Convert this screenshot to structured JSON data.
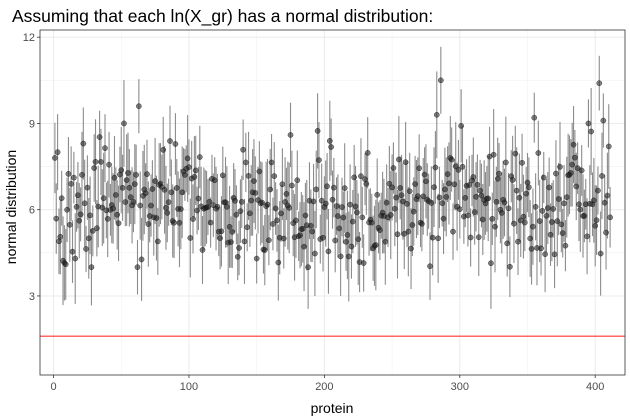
{
  "chart_data": {
    "type": "scatter",
    "title": "Assuming that each ln(X_gr) has a normal distribution:",
    "xlabel": "protein",
    "ylabel": "normal distribution",
    "xlim": [
      -10,
      422
    ],
    "ylim": [
      0.25,
      12.25
    ],
    "xticks": [
      "0",
      "100",
      "200",
      "300",
      "400"
    ],
    "yticks": [
      "3",
      "6",
      "9",
      "12"
    ],
    "grid": true,
    "reference_line": {
      "y": 1.6,
      "color": "#ff3333"
    },
    "point_color": "#1a1a1a",
    "errorbar_color": "#8c8c8c",
    "n_points": 411,
    "y_mean": 6.0,
    "y_range": [
      4.0,
      10.5
    ],
    "errorbar_halfwidth_range": [
      0.8,
      1.6
    ],
    "selected_points": [
      {
        "x": 1,
        "y": 7.8
      },
      {
        "x": 3,
        "y": 8.0
      },
      {
        "x": 4,
        "y": 4.9
      },
      {
        "x": 6,
        "y": 6.4
      },
      {
        "x": 9,
        "y": 4.1
      },
      {
        "x": 22,
        "y": 8.3
      },
      {
        "x": 52,
        "y": 9.0
      },
      {
        "x": 63,
        "y": 9.6
      },
      {
        "x": 110,
        "y": 4.6
      },
      {
        "x": 150,
        "y": 4.3
      },
      {
        "x": 175,
        "y": 8.6
      },
      {
        "x": 283,
        "y": 9.3
      },
      {
        "x": 286,
        "y": 10.5
      },
      {
        "x": 355,
        "y": 9.2
      },
      {
        "x": 380,
        "y": 7.2
      },
      {
        "x": 395,
        "y": 9.0
      },
      {
        "x": 403,
        "y": 10.4
      },
      {
        "x": 406,
        "y": 9.1
      },
      {
        "x": 410,
        "y": 8.2
      }
    ]
  }
}
